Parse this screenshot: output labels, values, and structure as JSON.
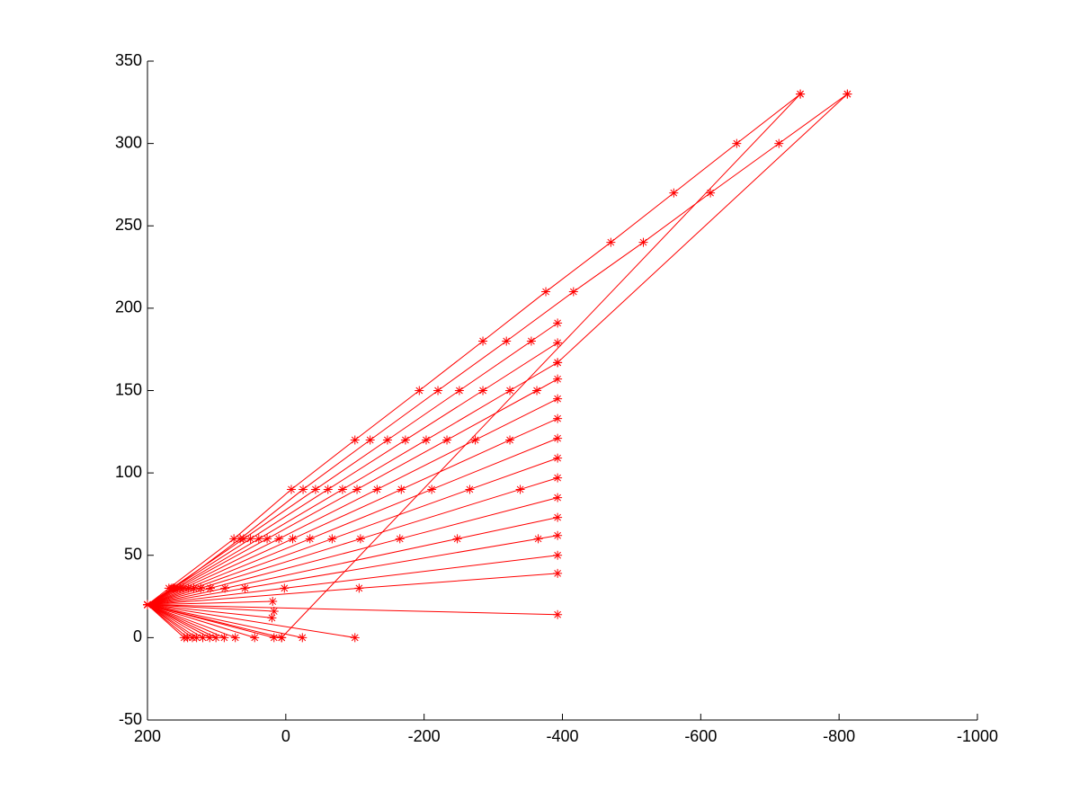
{
  "chart_data": {
    "type": "line",
    "color": "#ff0000",
    "marker": "*",
    "xlim": [
      200,
      -1000
    ],
    "xticks": [
      200,
      0,
      -200,
      -400,
      -600,
      -800,
      -1000
    ],
    "ylim": [
      -50,
      350
    ],
    "yticks": [
      -50,
      0,
      50,
      100,
      150,
      200,
      250,
      300,
      350
    ],
    "grid": false,
    "series": [
      {
        "x": [
          200,
          169,
          75,
          -8,
          -100,
          -193,
          -285,
          -376,
          -470,
          -561,
          -652,
          -744
        ],
        "values": [
          20,
          30,
          60,
          90,
          120,
          150,
          180,
          210,
          240,
          270,
          300,
          330
        ]
      },
      {
        "x": [
          200,
          162,
          66,
          -25,
          -122,
          -220,
          -319,
          -416,
          -517,
          -614,
          -713,
          -812
        ],
        "values": [
          20,
          30,
          60,
          90,
          120,
          150,
          180,
          210,
          240,
          270,
          300,
          330
        ]
      },
      {
        "x": [
          200,
          165,
          61,
          -43,
          -147,
          -251,
          -355,
          -393
        ],
        "values": [
          20,
          30,
          60,
          90,
          120,
          150,
          180,
          191
        ]
      },
      {
        "x": [
          200,
          163,
          51,
          -61,
          -173,
          -285,
          -393
        ],
        "values": [
          20,
          30,
          60,
          90,
          120,
          150,
          179
        ]
      },
      {
        "x": [
          200,
          160,
          39,
          -82,
          -203,
          -324,
          -393
        ],
        "values": [
          20,
          30,
          60,
          90,
          120,
          150,
          167
        ]
      },
      {
        "x": [
          200,
          157,
          27,
          -103,
          -233,
          -363,
          -393
        ],
        "values": [
          20,
          30,
          60,
          90,
          120,
          150,
          157
        ]
      },
      {
        "x": [
          200,
          153,
          10,
          -132,
          -274,
          -393
        ],
        "values": [
          20,
          30,
          60,
          90,
          120,
          145
        ]
      },
      {
        "x": [
          200,
          148,
          -10,
          -167,
          -324,
          -393
        ],
        "values": [
          20,
          30,
          60,
          90,
          120,
          133
        ]
      },
      {
        "x": [
          200,
          141,
          -35,
          -211,
          -393
        ],
        "values": [
          20,
          30,
          60,
          90,
          121
        ]
      },
      {
        "x": [
          200,
          133,
          -67,
          -266,
          -393
        ],
        "values": [
          20,
          30,
          60,
          90,
          109
        ]
      },
      {
        "x": [
          200,
          123,
          -108,
          -339,
          -393
        ],
        "values": [
          20,
          30,
          60,
          90,
          97
        ]
      },
      {
        "x": [
          200,
          109,
          -165,
          -393
        ],
        "values": [
          20,
          30,
          60,
          85
        ]
      },
      {
        "x": [
          200,
          88,
          -248,
          -393
        ],
        "values": [
          20,
          30,
          60,
          73
        ]
      },
      {
        "x": [
          200,
          59,
          -365,
          -393
        ],
        "values": [
          20,
          30,
          60,
          62
        ]
      },
      {
        "x": [
          200,
          2,
          -393
        ],
        "values": [
          20,
          30,
          50
        ]
      },
      {
        "x": [
          200,
          -106,
          -393
        ],
        "values": [
          20,
          30,
          39
        ]
      },
      {
        "x": [
          200,
          -393
        ],
        "values": [
          20,
          14
        ]
      },
      {
        "x": [
          200,
          147
        ],
        "values": [
          20,
          0
        ]
      },
      {
        "x": [
          200,
          142
        ],
        "values": [
          20,
          0
        ]
      },
      {
        "x": [
          200,
          135
        ],
        "values": [
          20,
          0
        ]
      },
      {
        "x": [
          200,
          129
        ],
        "values": [
          20,
          0
        ]
      },
      {
        "x": [
          200,
          120
        ],
        "values": [
          20,
          0
        ]
      },
      {
        "x": [
          200,
          110
        ],
        "values": [
          20,
          0
        ]
      },
      {
        "x": [
          200,
          101
        ],
        "values": [
          20,
          0
        ]
      },
      {
        "x": [
          200,
          89
        ],
        "values": [
          20,
          0
        ]
      },
      {
        "x": [
          200,
          73
        ],
        "values": [
          20,
          0
        ]
      },
      {
        "x": [
          200,
          45
        ],
        "values": [
          20,
          0
        ]
      },
      {
        "x": [
          200,
          17
        ],
        "values": [
          20,
          0
        ]
      },
      {
        "x": [
          200,
          6
        ],
        "values": [
          20,
          0
        ]
      },
      {
        "x": [
          200,
          -24
        ],
        "values": [
          20,
          0
        ]
      },
      {
        "x": [
          200,
          -100
        ],
        "values": [
          20,
          0
        ]
      },
      {
        "x": [
          200,
          19
        ],
        "values": [
          20,
          22
        ]
      },
      {
        "x": [
          200,
          20
        ],
        "values": [
          20,
          12
        ]
      },
      {
        "x": [
          200,
          17
        ],
        "values": [
          20,
          16
        ]
      },
      {
        "x": [
          -744,
          6
        ],
        "values": [
          330,
          0
        ]
      },
      {
        "x": [
          -812,
          -393
        ],
        "values": [
          330,
          167
        ]
      }
    ]
  }
}
